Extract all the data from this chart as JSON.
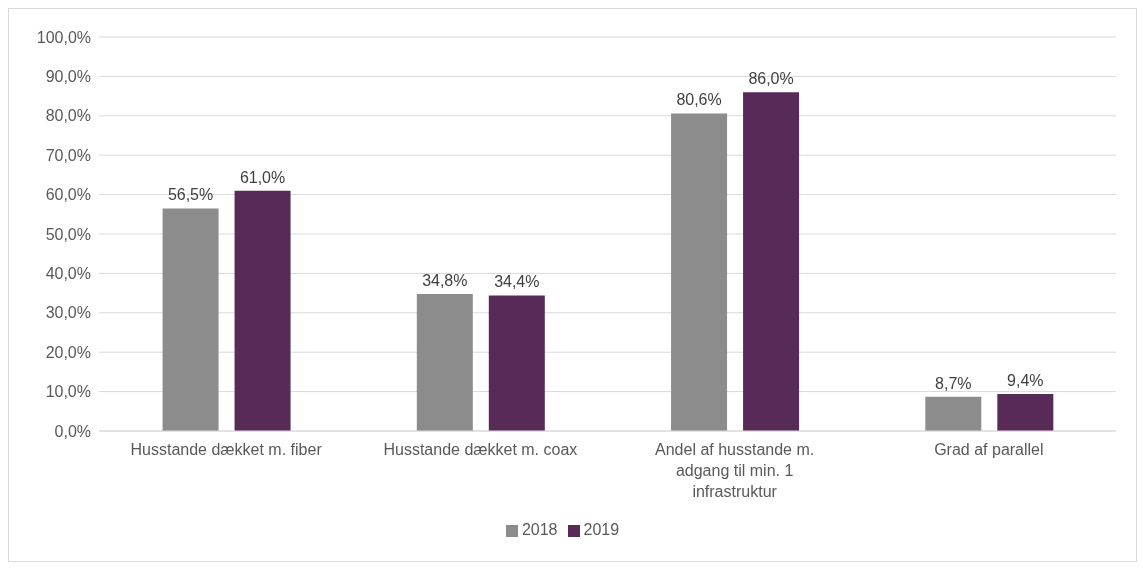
{
  "chart_data": {
    "type": "bar",
    "categories": [
      "Husstande dækket m. fiber",
      "Husstande dækket m. coax",
      "Andel af husstande m. adgang til min. 1 infrastruktur",
      "Grad af parallel"
    ],
    "series": [
      {
        "name": "2018",
        "color": "#8c8c8c",
        "values": [
          56.5,
          34.8,
          80.6,
          8.7
        ],
        "value_labels": [
          "56,5%",
          "34,8%",
          "80,6%",
          "8,7%"
        ]
      },
      {
        "name": "2019",
        "color": "#582a57",
        "values": [
          61.0,
          34.4,
          86.0,
          9.4
        ],
        "value_labels": [
          "61,0%",
          "34,4%",
          "86,0%",
          "9,4%"
        ]
      }
    ],
    "ylim": [
      0,
      100
    ],
    "yticks": [
      {
        "value": 0,
        "label": "0,0%"
      },
      {
        "value": 10,
        "label": "10,0%"
      },
      {
        "value": 20,
        "label": "20,0%"
      },
      {
        "value": 30,
        "label": "30,0%"
      },
      {
        "value": 40,
        "label": "40,0%"
      },
      {
        "value": 50,
        "label": "50,0%"
      },
      {
        "value": 60,
        "label": "60,0%"
      },
      {
        "value": 70,
        "label": "70,0%"
      },
      {
        "value": 80,
        "label": "80,0%"
      },
      {
        "value": 90,
        "label": "90,0%"
      },
      {
        "value": 100,
        "label": "100,0%"
      }
    ],
    "grid": "y",
    "legend": "bottom"
  }
}
